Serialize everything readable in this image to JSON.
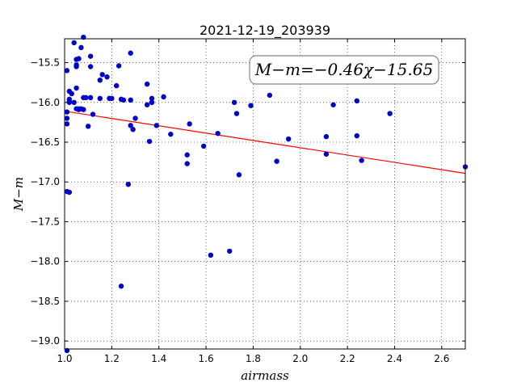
{
  "chart_data": {
    "type": "scatter",
    "title": "2021-12-19_203939",
    "xlabel": "airmass",
    "ylabel": "M−m",
    "xlim": [
      1.0,
      2.7
    ],
    "ylim": [
      -15.2,
      -19.1
    ],
    "y_inverted": true,
    "grid": true,
    "x_ticks": [
      "1.0",
      "1.2",
      "1.4",
      "1.6",
      "1.8",
      "2.0",
      "2.2",
      "2.4",
      "2.6"
    ],
    "y_ticks": [
      "−15.5",
      "−16.0",
      "−16.5",
      "−17.0",
      "−17.5",
      "−18.0",
      "−18.5",
      "−19.0"
    ],
    "annotation": "M−m=−0.46χ−15.65",
    "fit": {
      "slope": -0.46,
      "intercept": -15.65,
      "color": "#ff0000"
    },
    "point_color": "#0000cc",
    "series": [
      {
        "x": [
          1.01,
          1.01,
          1.01,
          1.01,
          1.01,
          1.01,
          1.02,
          1.02,
          1.02,
          1.02,
          1.02,
          1.03,
          1.04,
          1.04,
          1.05,
          1.05,
          1.05,
          1.05,
          1.05,
          1.06,
          1.06,
          1.06,
          1.07,
          1.07,
          1.08,
          1.08,
          1.08,
          1.09,
          1.1,
          1.11,
          1.11,
          1.11,
          1.12,
          1.15,
          1.15,
          1.16,
          1.18,
          1.19,
          1.2,
          1.22,
          1.23,
          1.24,
          1.24,
          1.25,
          1.27,
          1.28,
          1.28,
          1.28,
          1.29,
          1.3,
          1.35,
          1.35,
          1.36,
          1.37,
          1.37,
          1.37,
          1.39,
          1.42,
          1.45,
          1.52,
          1.52,
          1.53,
          1.59,
          1.62,
          1.65,
          1.7,
          1.72,
          1.73,
          1.74,
          1.79,
          1.87,
          1.9,
          1.95,
          2.11,
          2.11,
          2.14,
          2.24,
          2.24,
          2.26,
          2.38,
          2.7
        ],
        "y": [
          -15.6,
          -16.12,
          -16.2,
          -16.27,
          -17.12,
          -19.12,
          -15.86,
          -15.96,
          -15.99,
          -16.0,
          -17.13,
          -15.89,
          -15.25,
          -16.0,
          -15.46,
          -15.53,
          -15.55,
          -15.82,
          -16.08,
          -15.45,
          -16.08,
          -16.09,
          -15.31,
          -16.08,
          -15.18,
          -16.09,
          -15.94,
          -15.94,
          -16.3,
          -15.42,
          -15.55,
          -15.94,
          -16.15,
          -15.72,
          -15.95,
          -15.65,
          -15.68,
          -15.95,
          -15.95,
          -15.79,
          -15.54,
          -18.31,
          -15.96,
          -15.97,
          -17.03,
          -15.38,
          -15.97,
          -16.29,
          -16.34,
          -16.2,
          -15.77,
          -16.03,
          -16.49,
          -15.95,
          -16.0,
          -16.0,
          -16.29,
          -15.93,
          -16.4,
          -16.77,
          -16.66,
          -16.27,
          -16.55,
          -17.92,
          -16.39,
          -17.87,
          -16.0,
          -16.14,
          -16.91,
          -16.04,
          -15.91,
          -16.74,
          -16.46,
          -16.43,
          -16.65,
          -16.03,
          -15.98,
          -16.42,
          -16.73,
          -16.14,
          -16.81
        ]
      }
    ]
  }
}
